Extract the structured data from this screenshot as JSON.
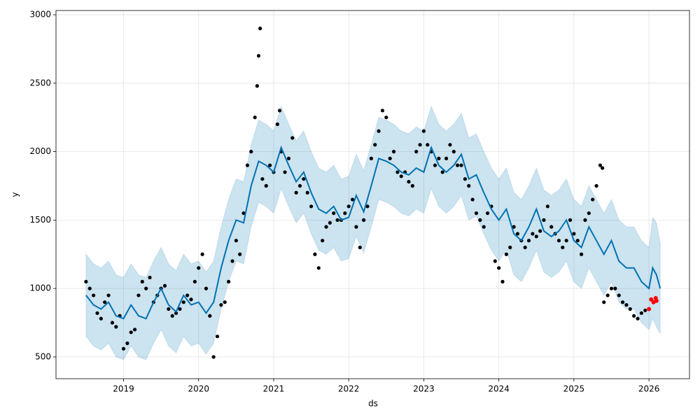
{
  "chart_data": {
    "type": "forecast",
    "xlabel": "ds",
    "ylabel": "y",
    "xlim": [
      2018.1,
      2026.54
    ],
    "ylim": [
      341,
      3031
    ],
    "xticks": [
      2019,
      2020,
      2021,
      2022,
      2023,
      2024,
      2025,
      2026
    ],
    "yticks": [
      500,
      1000,
      1500,
      2000,
      2500,
      3000
    ],
    "grid": true,
    "forecast": {
      "color": "#0072B2",
      "band_color": "#0072B2",
      "x": [
        2018.5,
        2018.6,
        2018.7,
        2018.8,
        2018.9,
        2019.0,
        2019.1,
        2019.2,
        2019.3,
        2019.4,
        2019.5,
        2019.6,
        2019.7,
        2019.8,
        2019.9,
        2020.0,
        2020.1,
        2020.2,
        2020.3,
        2020.4,
        2020.5,
        2020.6,
        2020.7,
        2020.8,
        2020.9,
        2021.0,
        2021.1,
        2021.2,
        2021.3,
        2021.4,
        2021.5,
        2021.6,
        2021.7,
        2021.8,
        2021.9,
        2022.0,
        2022.1,
        2022.2,
        2022.3,
        2022.4,
        2022.5,
        2022.6,
        2022.7,
        2022.8,
        2022.9,
        2023.0,
        2023.1,
        2023.2,
        2023.3,
        2023.4,
        2023.5,
        2023.6,
        2023.7,
        2023.8,
        2023.9,
        2024.0,
        2024.1,
        2024.2,
        2024.3,
        2024.4,
        2024.5,
        2024.6,
        2024.7,
        2024.8,
        2024.9,
        2025.0,
        2025.1,
        2025.2,
        2025.3,
        2025.4,
        2025.5,
        2025.6,
        2025.7,
        2025.8,
        2025.9,
        2026.0,
        2026.05,
        2026.1,
        2026.15
      ],
      "values": [
        950,
        880,
        850,
        900,
        800,
        780,
        880,
        800,
        780,
        900,
        1000,
        880,
        830,
        950,
        880,
        900,
        820,
        900,
        1150,
        1350,
        1500,
        1480,
        1750,
        1930,
        1900,
        1850,
        2030,
        1900,
        1780,
        1850,
        1700,
        1580,
        1550,
        1600,
        1500,
        1520,
        1680,
        1560,
        1750,
        1950,
        1930,
        1900,
        1850,
        1830,
        1880,
        1850,
        2030,
        1900,
        1850,
        1900,
        1980,
        1800,
        1830,
        1700,
        1580,
        1500,
        1580,
        1400,
        1350,
        1450,
        1580,
        1420,
        1380,
        1420,
        1500,
        1350,
        1300,
        1450,
        1350,
        1250,
        1350,
        1200,
        1150,
        1150,
        1050,
        1000,
        1150,
        1100,
        1000
      ],
      "lower": [
        650,
        580,
        550,
        600,
        500,
        480,
        580,
        500,
        480,
        600,
        700,
        580,
        530,
        650,
        580,
        600,
        520,
        600,
        850,
        1050,
        1200,
        1180,
        1450,
        1630,
        1600,
        1550,
        1730,
        1600,
        1480,
        1550,
        1400,
        1280,
        1250,
        1300,
        1200,
        1220,
        1380,
        1260,
        1450,
        1650,
        1630,
        1600,
        1550,
        1530,
        1580,
        1550,
        1730,
        1600,
        1550,
        1600,
        1680,
        1500,
        1530,
        1400,
        1280,
        1200,
        1280,
        1100,
        1050,
        1150,
        1280,
        1120,
        1080,
        1120,
        1200,
        1050,
        1000,
        1150,
        1050,
        950,
        1050,
        900,
        850,
        850,
        750,
        700,
        780,
        720,
        670
      ],
      "upper": [
        1250,
        1180,
        1150,
        1200,
        1100,
        1080,
        1180,
        1100,
        1080,
        1200,
        1300,
        1180,
        1130,
        1250,
        1180,
        1200,
        1120,
        1200,
        1450,
        1650,
        1800,
        1780,
        2050,
        2230,
        2200,
        2150,
        2330,
        2200,
        2080,
        2150,
        2000,
        1880,
        1850,
        1900,
        1800,
        1820,
        1980,
        1860,
        2050,
        2250,
        2230,
        2200,
        2150,
        2130,
        2180,
        2150,
        2330,
        2200,
        2150,
        2200,
        2280,
        2100,
        2130,
        2000,
        1880,
        1800,
        1880,
        1700,
        1650,
        1750,
        1880,
        1720,
        1680,
        1720,
        1800,
        1650,
        1600,
        1750,
        1650,
        1550,
        1650,
        1500,
        1450,
        1450,
        1350,
        1300,
        1520,
        1480,
        1330
      ]
    },
    "observed": {
      "color": "#000000",
      "x": [
        2018.5,
        2018.55,
        2018.6,
        2018.65,
        2018.7,
        2018.75,
        2018.8,
        2018.85,
        2018.9,
        2018.95,
        2019,
        2019.05,
        2019.1,
        2019.15,
        2019.2,
        2019.25,
        2019.3,
        2019.35,
        2019.4,
        2019.45,
        2019.5,
        2019.55,
        2019.6,
        2019.65,
        2019.7,
        2019.75,
        2019.8,
        2019.85,
        2019.9,
        2019.95,
        2020,
        2020.05,
        2020.1,
        2020.15,
        2020.2,
        2020.25,
        2020.3,
        2020.35,
        2020.4,
        2020.45,
        2020.5,
        2020.55,
        2020.6,
        2020.65,
        2020.7,
        2020.75,
        2020.78,
        2020.8,
        2020.82,
        2020.85,
        2020.9,
        2020.95,
        2021,
        2021.05,
        2021.08,
        2021.1,
        2021.15,
        2021.2,
        2021.25,
        2021.3,
        2021.35,
        2021.4,
        2021.45,
        2021.5,
        2021.55,
        2021.6,
        2021.65,
        2021.7,
        2021.75,
        2021.8,
        2021.85,
        2021.9,
        2021.95,
        2022,
        2022.05,
        2022.1,
        2022.15,
        2022.2,
        2022.25,
        2022.3,
        2022.35,
        2022.4,
        2022.45,
        2022.5,
        2022.55,
        2022.6,
        2022.65,
        2022.7,
        2022.75,
        2022.8,
        2022.85,
        2022.9,
        2022.95,
        2023,
        2023.05,
        2023.1,
        2023.15,
        2023.2,
        2023.25,
        2023.3,
        2023.35,
        2023.4,
        2023.45,
        2023.5,
        2023.55,
        2023.6,
        2023.65,
        2023.7,
        2023.75,
        2023.8,
        2023.85,
        2023.9,
        2023.95,
        2024,
        2024.05,
        2024.1,
        2024.15,
        2024.2,
        2024.25,
        2024.3,
        2024.35,
        2024.4,
        2024.45,
        2024.5,
        2024.55,
        2024.6,
        2024.65,
        2024.7,
        2024.75,
        2024.8,
        2024.85,
        2024.9,
        2024.95,
        2025,
        2025.05,
        2025.1,
        2025.15,
        2025.2,
        2025.25,
        2025.3,
        2025.35,
        2025.38,
        2025.4,
        2025.45,
        2025.5,
        2025.55,
        2025.6,
        2025.65,
        2025.7,
        2025.75,
        2025.8,
        2025.85,
        2025.9,
        2025.95
      ],
      "values": [
        1050,
        1000,
        950,
        820,
        780,
        900,
        950,
        750,
        720,
        800,
        560,
        600,
        680,
        700,
        950,
        1050,
        1000,
        1080,
        900,
        950,
        1000,
        1020,
        850,
        800,
        820,
        850,
        900,
        950,
        920,
        1050,
        1150,
        1250,
        1000,
        800,
        500,
        650,
        880,
        900,
        1050,
        1200,
        1350,
        1250,
        1550,
        1900,
        2000,
        2250,
        2480,
        2700,
        2900,
        1800,
        1750,
        1900,
        1850,
        2200,
        2300,
        2000,
        1850,
        1950,
        2100,
        1700,
        1750,
        1800,
        1700,
        1600,
        1250,
        1150,
        1350,
        1450,
        1480,
        1550,
        1500,
        1500,
        1550,
        1600,
        1650,
        1450,
        1300,
        1500,
        1600,
        1950,
        2050,
        2150,
        2300,
        2250,
        1950,
        2000,
        1850,
        1820,
        1850,
        1780,
        1750,
        2000,
        2050,
        2150,
        2050,
        2000,
        1900,
        1950,
        1850,
        1950,
        2050,
        2000,
        1900,
        1900,
        1800,
        1750,
        1650,
        1550,
        1500,
        1450,
        1550,
        1600,
        1200,
        1150,
        1050,
        1250,
        1300,
        1450,
        1400,
        1350,
        1300,
        1350,
        1400,
        1380,
        1420,
        1500,
        1600,
        1450,
        1400,
        1350,
        1300,
        1350,
        1500,
        1400,
        1350,
        1250,
        1500,
        1550,
        1650,
        1750,
        1900,
        1880,
        900,
        950,
        1000,
        1000,
        950,
        900,
        880,
        850,
        800,
        780,
        820,
        840
      ]
    },
    "recent": {
      "color": "#ff0000",
      "x": [
        2026.0,
        2026.03,
        2026.06,
        2026.09,
        2026.1
      ],
      "values": [
        850,
        920,
        900,
        930,
        910
      ]
    }
  }
}
